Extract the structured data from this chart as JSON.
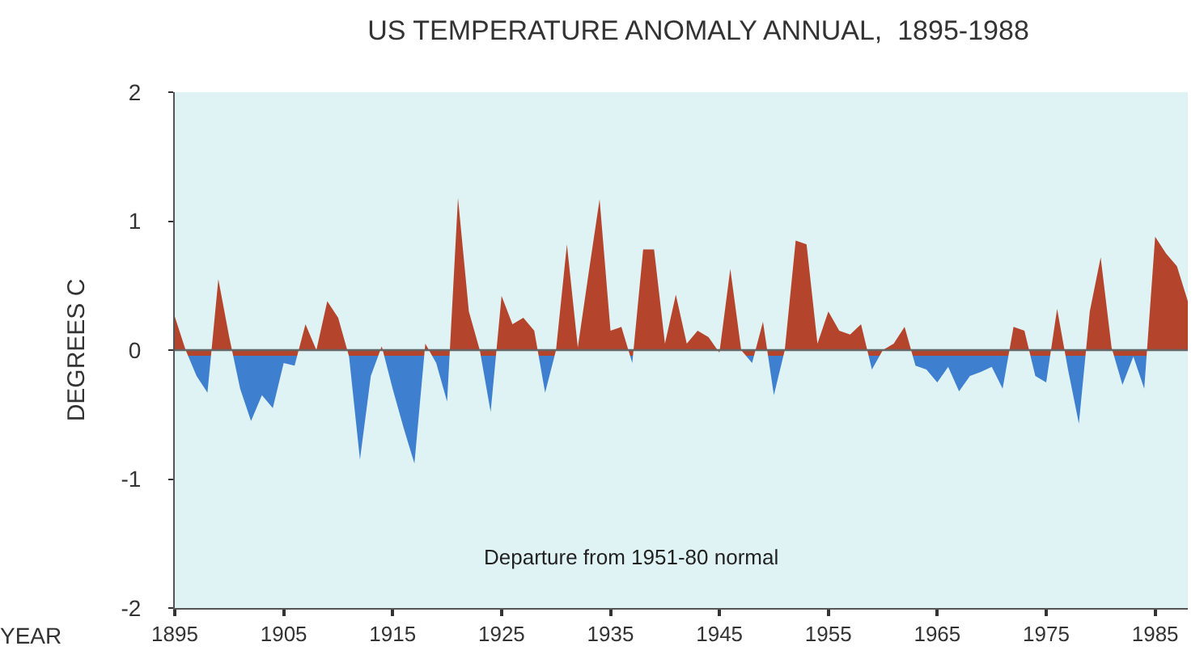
{
  "chart_data": {
    "type": "area",
    "title": "US TEMPERATURE ANOMALY ANNUAL,  1895-1988",
    "xlabel": "YEAR",
    "ylabel": "DEGREES C",
    "annotations": [
      "Departure from 1951-80 normal"
    ],
    "x": [
      1895,
      1896,
      1897,
      1898,
      1899,
      1900,
      1901,
      1902,
      1903,
      1904,
      1905,
      1906,
      1907,
      1908,
      1909,
      1910,
      1911,
      1912,
      1913,
      1914,
      1915,
      1916,
      1917,
      1918,
      1919,
      1920,
      1921,
      1922,
      1923,
      1924,
      1925,
      1926,
      1927,
      1928,
      1929,
      1930,
      1931,
      1932,
      1933,
      1934,
      1935,
      1936,
      1937,
      1938,
      1939,
      1940,
      1941,
      1942,
      1943,
      1944,
      1945,
      1946,
      1947,
      1948,
      1949,
      1950,
      1951,
      1952,
      1953,
      1954,
      1955,
      1956,
      1957,
      1958,
      1959,
      1960,
      1961,
      1962,
      1963,
      1964,
      1965,
      1966,
      1967,
      1968,
      1969,
      1970,
      1971,
      1972,
      1973,
      1974,
      1975,
      1976,
      1977,
      1978,
      1979,
      1980,
      1981,
      1982,
      1983,
      1984,
      1985,
      1986,
      1987,
      1988
    ],
    "values": [
      0.26,
      0.0,
      -0.2,
      -0.33,
      0.55,
      0.1,
      -0.3,
      -0.55,
      -0.35,
      -0.45,
      -0.1,
      -0.12,
      0.2,
      0.0,
      0.38,
      0.25,
      -0.05,
      -0.85,
      -0.2,
      0.03,
      -0.3,
      -0.6,
      -0.88,
      0.05,
      -0.1,
      -0.4,
      1.18,
      0.3,
      0.0,
      -0.48,
      0.42,
      0.2,
      0.25,
      0.15,
      -0.33,
      0.0,
      0.82,
      0.02,
      0.6,
      1.17,
      0.15,
      0.18,
      -0.1,
      0.78,
      0.78,
      0.05,
      0.43,
      0.05,
      0.15,
      0.1,
      -0.02,
      0.63,
      0.0,
      -0.1,
      0.22,
      -0.35,
      0.0,
      0.85,
      0.82,
      0.05,
      0.3,
      0.15,
      0.12,
      0.2,
      -0.15,
      0.0,
      0.05,
      0.18,
      -0.12,
      -0.15,
      -0.25,
      -0.13,
      -0.32,
      -0.2,
      -0.17,
      -0.13,
      -0.3,
      0.18,
      0.15,
      -0.2,
      -0.25,
      0.32,
      -0.15,
      -0.57,
      0.3,
      0.72,
      0.02,
      -0.27,
      -0.05,
      -0.3,
      0.88,
      0.75,
      0.65,
      0.38
    ],
    "colors": [
      "#b5442c",
      "#b5442c",
      "#3f7fd0",
      "#3f7fd0",
      "#b5442c",
      "#b5442c",
      "#3f7fd0",
      "#3f7fd0",
      "#3f7fd0",
      "#3f7fd0",
      "#3f7fd0",
      "#3f7fd0",
      "#b5442c",
      "#b5442c",
      "#b5442c",
      "#b5442c",
      "#3f7fd0",
      "#3f7fd0",
      "#3f7fd0",
      "#b5442c",
      "#3f7fd0",
      "#3f7fd0",
      "#3f7fd0",
      "#b5442c",
      "#3f7fd0",
      "#3f7fd0",
      "#b5442c",
      "#b5442c",
      "#b5442c",
      "#3f7fd0",
      "#b5442c",
      "#b5442c",
      "#b5442c",
      "#b5442c",
      "#3f7fd0",
      "#b5442c",
      "#b5442c",
      "#b5442c",
      "#b5442c",
      "#b5442c",
      "#b5442c",
      "#b5442c",
      "#3f7fd0",
      "#b5442c",
      "#b5442c",
      "#b5442c",
      "#b5442c",
      "#b5442c",
      "#b5442c",
      "#b5442c",
      "#3f7fd0",
      "#b5442c",
      "#b5442c",
      "#3f7fd0",
      "#b5442c",
      "#3f7fd0",
      "#b5442c",
      "#b5442c",
      "#b5442c",
      "#b5442c",
      "#b5442c",
      "#b5442c",
      "#b5442c",
      "#b5442c",
      "#3f7fd0",
      "#b5442c",
      "#b5442c",
      "#b5442c",
      "#3f7fd0",
      "#3f7fd0",
      "#3f7fd0",
      "#3f7fd0",
      "#3f7fd0",
      "#3f7fd0",
      "#3f7fd0",
      "#3f7fd0",
      "#3f7fd0",
      "#b5442c",
      "#b5442c",
      "#3f7fd0",
      "#3f7fd0",
      "#b5442c",
      "#3f7fd0",
      "#3f7fd0",
      "#b5442c",
      "#b5442c",
      "#b5442c",
      "#3f7fd0",
      "#3f7fd0",
      "#3f7fd0",
      "#b5442c",
      "#b5442c",
      "#b5442c",
      "#b5442c"
    ],
    "xlim": [
      1895,
      1988
    ],
    "xticks": [
      1895,
      1905,
      1915,
      1925,
      1935,
      1945,
      1955,
      1965,
      1975,
      1985
    ],
    "ylim": [
      -2,
      2
    ],
    "yticks": [
      -2,
      -1,
      0,
      1,
      2
    ],
    "ref_lines": [
      {
        "axis": "y",
        "value": 0,
        "color": "#666666"
      }
    ]
  }
}
